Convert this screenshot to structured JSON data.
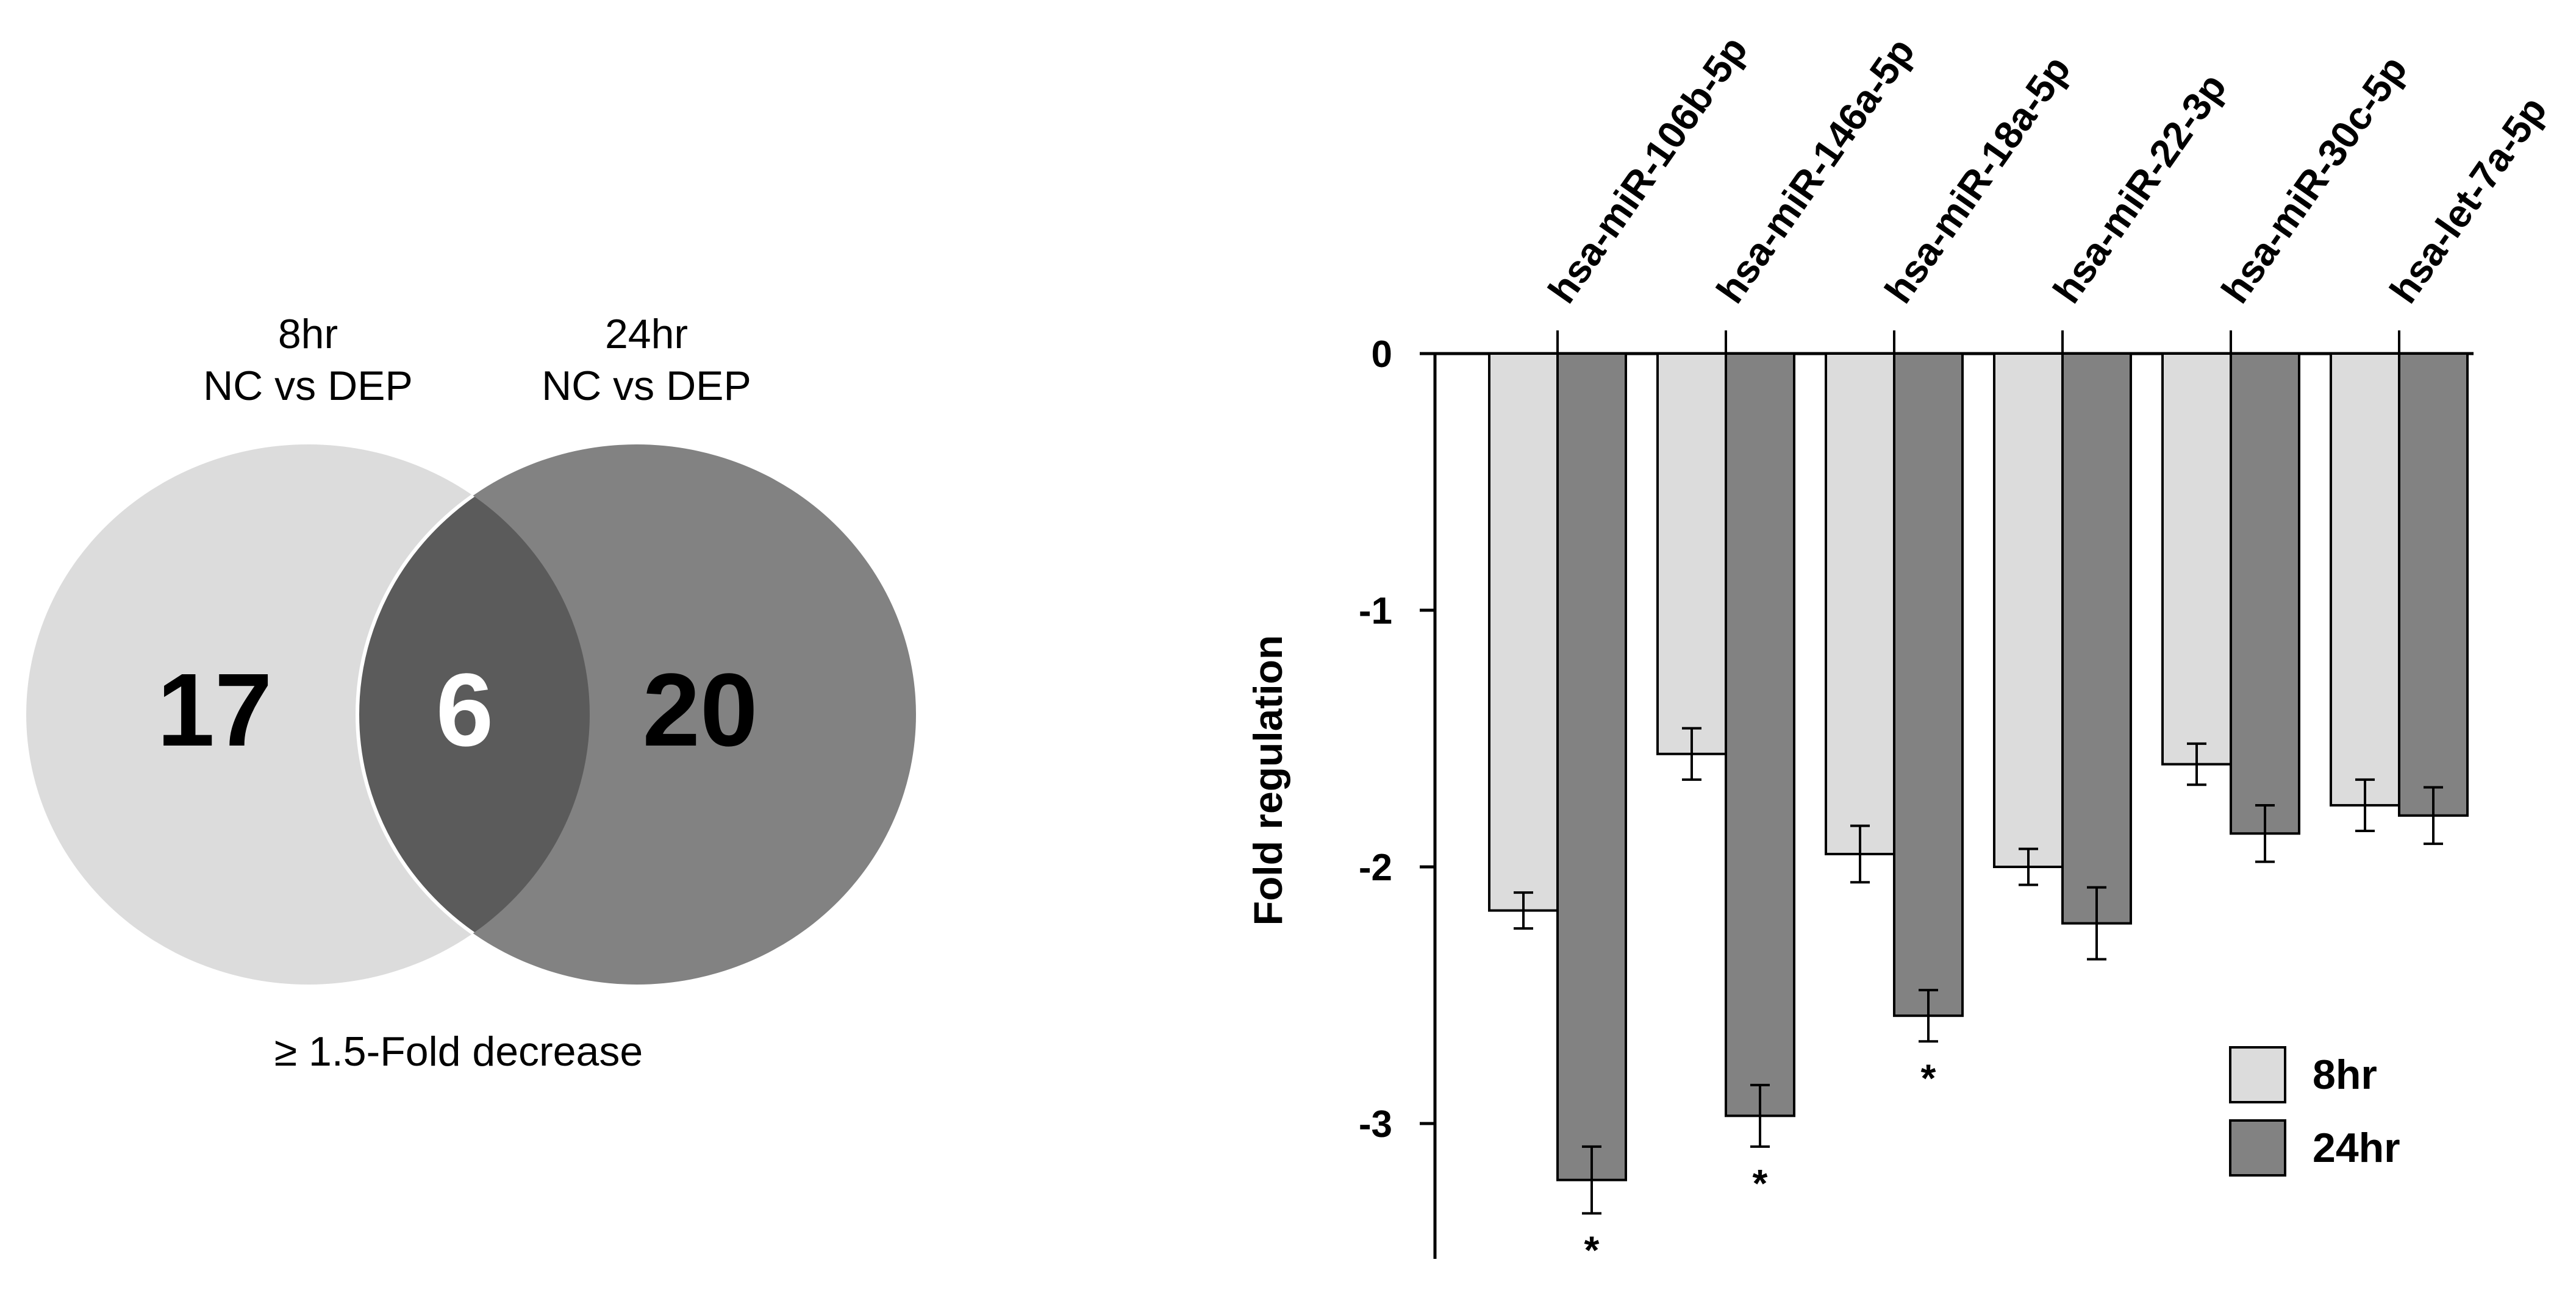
{
  "venn": {
    "left_set": {
      "line1": "8hr",
      "line2": "NC vs DEP",
      "count": "17",
      "color": "#dcdcdc"
    },
    "right_set": {
      "line1": "24hr",
      "line2": "NC vs DEP",
      "count": "20",
      "color": "#828282"
    },
    "overlap": {
      "count": "6",
      "color": "#5b5b5b"
    },
    "caption": "≥ 1.5-Fold decrease"
  },
  "chart_data": {
    "type": "bar",
    "title": "",
    "xlabel": "",
    "ylabel": "Fold regulation",
    "ylim": [
      -3.5,
      0
    ],
    "yticks": [
      0,
      -1,
      -2,
      -3
    ],
    "ytick_labels": [
      "0",
      "-1",
      "-2",
      "-3"
    ],
    "grid": false,
    "categories": [
      "hsa-miR-106b-5p",
      "hsa-miR-146a-5p",
      "hsa-miR-18a-5p",
      "hsa-miR-22-3p",
      "hsa-miR-30c-5p",
      "hsa-let-7a-5p"
    ],
    "series": [
      {
        "name": "8hr",
        "color": "#dcdcdc",
        "values": [
          -2.17,
          -1.56,
          -1.95,
          -2.0,
          -1.6,
          -1.76
        ],
        "errors": [
          0.07,
          0.1,
          0.11,
          0.07,
          0.08,
          0.1
        ]
      },
      {
        "name": "24hr",
        "color": "#828282",
        "values": [
          -3.22,
          -2.97,
          -2.58,
          -2.22,
          -1.87,
          -1.8
        ],
        "errors": [
          0.13,
          0.12,
          0.1,
          0.14,
          0.11,
          0.11
        ]
      }
    ],
    "significance": [
      {
        "category_index": 0,
        "series": "24hr",
        "label": "*"
      },
      {
        "category_index": 1,
        "series": "24hr",
        "label": "*"
      },
      {
        "category_index": 2,
        "series": "24hr",
        "label": "*"
      }
    ],
    "legend": {
      "position": "bottom-right",
      "entries": [
        "8hr",
        "24hr"
      ]
    }
  }
}
